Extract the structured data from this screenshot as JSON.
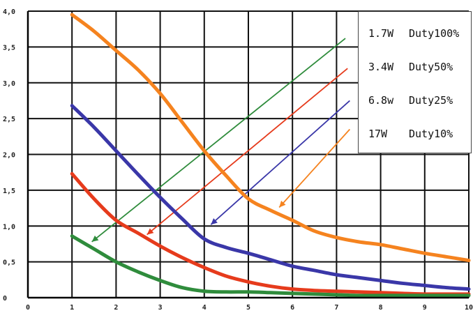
{
  "chart_data": {
    "type": "line",
    "xlim": [
      0,
      10
    ],
    "ylim": [
      0,
      4
    ],
    "x_ticks": [
      "0",
      "1",
      "2",
      "3",
      "4",
      "5",
      "6",
      "7",
      "8",
      "9",
      "10"
    ],
    "y_ticks": [
      "0",
      "0,5",
      "1,0",
      "1,5",
      "2,0",
      "2,5",
      "3,0",
      "3,5",
      "4,0"
    ],
    "grid": true,
    "legend_placement": "top-right",
    "legend": [
      {
        "power": "1.7W",
        "duty": "Duty100%"
      },
      {
        "power": "3.4W",
        "duty": "Duty50%"
      },
      {
        "power": "6.8w",
        "duty": "Duty25%"
      },
      {
        "power": "17W",
        "duty": "Duty10%"
      }
    ],
    "series": [
      {
        "color": "#f5831f",
        "x": [
          1,
          1.5,
          2,
          2.5,
          3,
          3.5,
          4,
          4.5,
          5,
          5.5,
          6,
          6.5,
          7,
          7.5,
          8,
          8.5,
          9,
          9.5,
          10
        ],
        "y": [
          3.95,
          3.72,
          3.45,
          3.18,
          2.85,
          2.45,
          2.05,
          1.7,
          1.38,
          1.22,
          1.08,
          0.93,
          0.84,
          0.78,
          0.74,
          0.68,
          0.62,
          0.57,
          0.52
        ]
      },
      {
        "color": "#3a37a8",
        "x": [
          1,
          1.5,
          2,
          2.5,
          3,
          3.5,
          4,
          4.5,
          5,
          5.5,
          6,
          6.5,
          7,
          7.5,
          8,
          8.5,
          9,
          9.5,
          10
        ],
        "y": [
          2.68,
          2.38,
          2.05,
          1.72,
          1.4,
          1.1,
          0.82,
          0.7,
          0.62,
          0.53,
          0.44,
          0.38,
          0.32,
          0.28,
          0.24,
          0.2,
          0.17,
          0.14,
          0.12
        ]
      },
      {
        "color": "#e63b1c",
        "x": [
          1,
          1.5,
          2,
          2.5,
          3,
          3.5,
          4,
          4.5,
          5,
          5.5,
          6,
          6.5,
          7,
          7.5,
          8,
          8.5,
          9,
          9.5,
          10
        ],
        "y": [
          1.73,
          1.38,
          1.08,
          0.9,
          0.72,
          0.56,
          0.42,
          0.3,
          0.22,
          0.16,
          0.12,
          0.1,
          0.09,
          0.08,
          0.07,
          0.06,
          0.05,
          0.05,
          0.05
        ]
      },
      {
        "color": "#2f8c3c",
        "x": [
          1,
          1.5,
          2,
          2.5,
          3,
          3.5,
          4,
          4.5,
          5,
          5.5,
          6,
          6.5,
          7,
          7.5,
          8,
          8.5,
          9,
          9.5,
          10
        ],
        "y": [
          0.86,
          0.68,
          0.5,
          0.36,
          0.24,
          0.14,
          0.09,
          0.08,
          0.08,
          0.07,
          0.06,
          0.05,
          0.04,
          0.03,
          0.03,
          0.03,
          0.03,
          0.03,
          0.03
        ]
      }
    ],
    "arrows": [
      {
        "color": "#2f8c3c",
        "from": [
          7.2,
          3.62
        ],
        "to": [
          1.45,
          0.78
        ]
      },
      {
        "color": "#e63b1c",
        "from": [
          7.25,
          3.2
        ],
        "to": [
          2.7,
          0.88
        ]
      },
      {
        "color": "#3a37a8",
        "from": [
          7.3,
          2.75
        ],
        "to": [
          4.15,
          1.02
        ]
      },
      {
        "color": "#f5831f",
        "from": [
          7.3,
          2.35
        ],
        "to": [
          5.7,
          1.26
        ]
      }
    ]
  }
}
